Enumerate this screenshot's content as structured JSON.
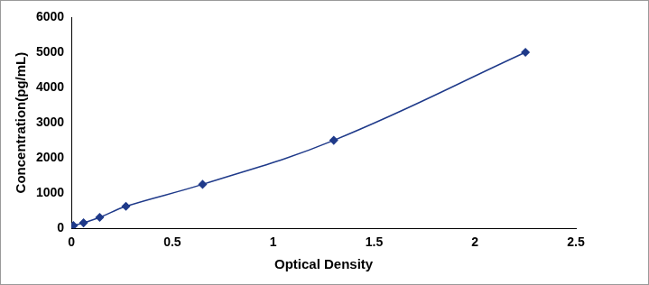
{
  "chart_data": {
    "type": "line",
    "x_label": "Optical Density",
    "y_label": "Concentration(pg/mL)",
    "x": [
      0.01,
      0.06,
      0.14,
      0.27,
      0.65,
      1.3,
      2.25
    ],
    "values": [
      78,
      156,
      312,
      625,
      1250,
      2500,
      5000
    ],
    "color": "#1f3a8a",
    "marker": "diamond",
    "xlim": [
      0,
      2.5
    ],
    "xticks": [
      0,
      0.5,
      1,
      1.5,
      2,
      2.5
    ],
    "ylim": [
      0,
      6000
    ],
    "yticks": [
      0,
      1000,
      2000,
      3000,
      4000,
      5000,
      6000
    ],
    "grid": false
  }
}
